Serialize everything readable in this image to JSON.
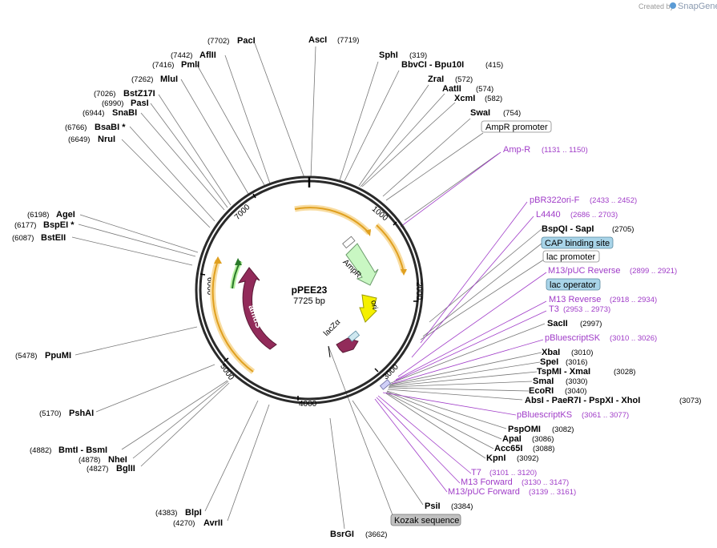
{
  "branding": {
    "created_by": "Created by",
    "product": "SnapGene"
  },
  "plasmid": {
    "name": "pPEE23",
    "length_label": "7725 bp"
  },
  "ticks": [
    "1000",
    "2000",
    "3000",
    "4000",
    "5000",
    "6000",
    "7000"
  ],
  "enzymes": [
    {
      "name": "AscI",
      "pos": "(7719)"
    },
    {
      "name": "SphI",
      "pos": "(319)"
    },
    {
      "name": "BbvCI - Bpu10I",
      "pos": "(415)"
    },
    {
      "name": "ZraI",
      "pos": "(572)"
    },
    {
      "name": "AatII",
      "pos": "(574)"
    },
    {
      "name": "XcmI",
      "pos": "(582)"
    },
    {
      "name": "SwaI",
      "pos": "(754)"
    },
    {
      "name": "BspQI - SapI",
      "pos": "(2705)"
    },
    {
      "name": "SacII",
      "pos": "(2997)"
    },
    {
      "name": "XbaI",
      "pos": "(3010)"
    },
    {
      "name": "SpeI",
      "pos": "(3016)"
    },
    {
      "name": "TspMI - XmaI",
      "pos": "(3028)"
    },
    {
      "name": "SmaI",
      "pos": "(3030)"
    },
    {
      "name": "EcoRI",
      "pos": "(3040)"
    },
    {
      "name": "AbsI - PaeR7I - PspXI - XhoI",
      "pos": "(3073)"
    },
    {
      "name": "PspOMI",
      "pos": "(3082)"
    },
    {
      "name": "ApaI",
      "pos": "(3086)"
    },
    {
      "name": "Acc65I",
      "pos": "(3088)"
    },
    {
      "name": "KpnI",
      "pos": "(3092)"
    },
    {
      "name": "PsiI",
      "pos": "(3384)"
    },
    {
      "name": "BsrGI",
      "pos": "(3662)"
    },
    {
      "name": "AvrII",
      "pos": "(4270)"
    },
    {
      "name": "BlpI",
      "pos": "(4383)"
    },
    {
      "name": "BglII",
      "pos": "(4827)"
    },
    {
      "name": "NheI",
      "pos": "(4878)"
    },
    {
      "name": "BmtI - BsmI",
      "pos": "(4882)"
    },
    {
      "name": "PshAI",
      "pos": "(5170)"
    },
    {
      "name": "PpuMI",
      "pos": "(5478)"
    },
    {
      "name": "BstEII",
      "pos": "(6087)"
    },
    {
      "name": "BspEI *",
      "pos": "(6177)"
    },
    {
      "name": "AgeI",
      "pos": "(6198)"
    },
    {
      "name": "NruI",
      "pos": "(6649)"
    },
    {
      "name": "BsaBI *",
      "pos": "(6766)"
    },
    {
      "name": "SnaBI",
      "pos": "(6944)"
    },
    {
      "name": "PasI",
      "pos": "(6990)"
    },
    {
      "name": "BstZ17I",
      "pos": "(7026)"
    },
    {
      "name": "MluI",
      "pos": "(7262)"
    },
    {
      "name": "PmlI",
      "pos": "(7416)"
    },
    {
      "name": "AflII",
      "pos": "(7442)"
    },
    {
      "name": "PacI",
      "pos": "(7702)"
    }
  ],
  "features": [
    {
      "name": "Amp-R",
      "range": "(1131 .. 1150)"
    },
    {
      "name": "pBR322ori-F",
      "range": "(2433 .. 2452)"
    },
    {
      "name": "L4440",
      "range": "(2686 .. 2703)"
    },
    {
      "name": "M13/pUC Reverse",
      "range": "(2899 .. 2921)"
    },
    {
      "name": "M13 Reverse",
      "range": "(2918 .. 2934)"
    },
    {
      "name": "T3",
      "range": "(2953 .. 2973)"
    },
    {
      "name": "pBluescriptSK",
      "range": "(3010 .. 3026)"
    },
    {
      "name": "pBluescriptKS",
      "range": "(3061 .. 3077)"
    },
    {
      "name": "T7",
      "range": "(3101 .. 3120)"
    },
    {
      "name": "M13 Forward",
      "range": "(3130 .. 3147)"
    },
    {
      "name": "M13/pUC Forward",
      "range": "(3139 .. 3161)"
    }
  ],
  "boxed": {
    "ampr_promoter": "AmpR promoter",
    "cap_binding_site": "CAP binding site",
    "lac_promoter": "lac promoter",
    "lac_operator": "lac operator",
    "kozak_sequence": "Kozak sequence"
  },
  "inner_features": {
    "ampr": "AmpR",
    "ori": "ori",
    "lacza": "lacZα",
    "amds": "amdS"
  },
  "colors": {
    "amdS": "#922b5a",
    "ampR": "#c9f7c3",
    "ori": "#f5f000",
    "lacZ": "#922b5a",
    "primer": "#a03cc8",
    "orange": "#f0a830"
  }
}
